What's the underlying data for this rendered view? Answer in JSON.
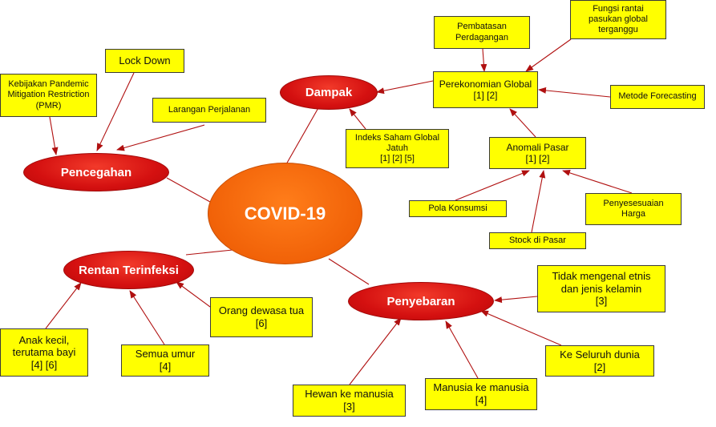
{
  "center": {
    "label": "COVID-19"
  },
  "main": {
    "dampak": "Dampak",
    "pencegahan": "Pencegahan",
    "rentan": "Rentan Terinfeksi",
    "penyebaran": "Penyebaran"
  },
  "notes": {
    "kebijakan": [
      "Kebijakan Pandemic",
      "Mitigation Restriction",
      "(PMR)"
    ],
    "lockdown": [
      "Lock Down"
    ],
    "larangan": [
      "Larangan Perjalanan"
    ],
    "pembatasan": [
      "Pembatasan",
      "Perdagangan"
    ],
    "fungsi": [
      "Fungsi rantai",
      "pasukan global",
      "terganggu"
    ],
    "perekonomian": [
      "Perekonomian Global",
      "[1] [2]"
    ],
    "metode": [
      "Metode Forecasting"
    ],
    "indeks": [
      "Indeks Saham Global",
      "Jatuh",
      "[1] [2] [5]"
    ],
    "anomali": [
      "Anomali Pasar",
      "[1] [2]"
    ],
    "pola": [
      "Pola Konsumsi"
    ],
    "penyesuaian": [
      "Penyesesuaian",
      "Harga"
    ],
    "stock": [
      "Stock di Pasar"
    ],
    "tidak": [
      "Tidak mengenal etnis",
      "dan jenis kelamin",
      "[3]"
    ],
    "orang": [
      "Orang dewasa tua",
      "[6]"
    ],
    "anak": [
      "Anak kecil,",
      "terutama bayi",
      "[4] [6]"
    ],
    "semua": [
      "Semua umur",
      "[4]"
    ],
    "keseluruh": [
      "Ke Seluruh dunia",
      "[2]"
    ],
    "hewan": [
      "Hewan ke manusia",
      "[3]"
    ],
    "manusia": [
      "Manusia ke manusia",
      "[4]"
    ]
  },
  "colors": {
    "note_fill": "#ffff00",
    "main_node_fill": "#d41010",
    "center_fill": "#f16208",
    "link": "#b01010"
  }
}
